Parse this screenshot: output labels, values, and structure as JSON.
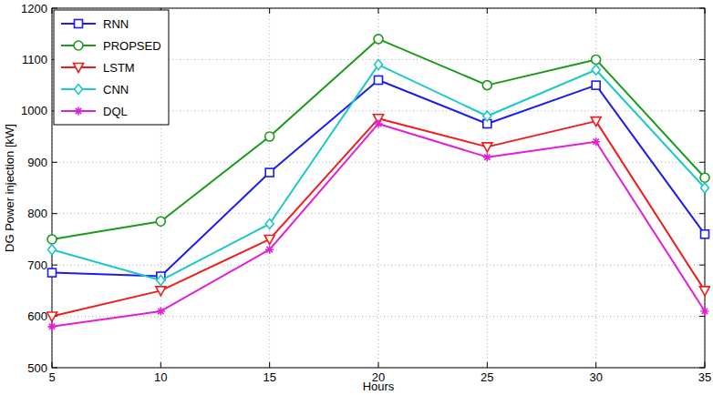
{
  "chart_data": {
    "type": "line",
    "x_label": "Hours",
    "y_label": "DG Power injection [kW]",
    "x": [
      5,
      10,
      15,
      20,
      25,
      30,
      35
    ],
    "xlim": [
      5,
      35
    ],
    "xticks": [
      5,
      10,
      15,
      20,
      25,
      30,
      35
    ],
    "ylim": [
      500,
      1200
    ],
    "yticks": [
      500,
      600,
      700,
      800,
      900,
      1000,
      1100,
      1200
    ],
    "grid": true,
    "legend": "top-left",
    "series": [
      {
        "name": "RNN",
        "color": "#1c1cf0",
        "marker": "square",
        "line_style": "solid",
        "values": [
          685,
          678,
          880,
          1060,
          975,
          1050,
          760
        ]
      },
      {
        "name": "PROPSED",
        "color": "#1a9a1a",
        "marker": "circle",
        "line_style": "solid",
        "values": [
          750,
          785,
          950,
          1140,
          1050,
          1100,
          870
        ]
      },
      {
        "name": "LSTM",
        "color": "#f01c1c",
        "marker": "triangle-down",
        "line_style": "solid",
        "values": [
          600,
          650,
          750,
          985,
          930,
          980,
          650
        ]
      },
      {
        "name": "CNN",
        "color": "#1cc8c8",
        "marker": "diamond",
        "line_style": "solid",
        "values": [
          730,
          670,
          780,
          1090,
          990,
          1080,
          850
        ]
      },
      {
        "name": "DQL",
        "color": "#e020d8",
        "marker": "star",
        "line_style": "solid",
        "values": [
          580,
          610,
          730,
          975,
          910,
          940,
          610
        ]
      }
    ]
  }
}
